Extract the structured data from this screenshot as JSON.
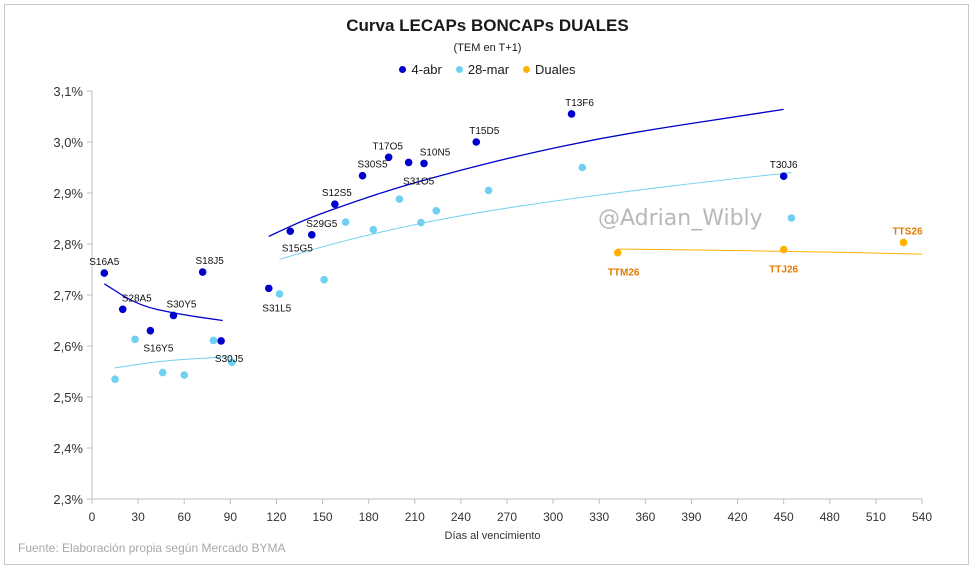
{
  "colors": {
    "abr": "#0000cc",
    "mar": "#70d0f0",
    "duales": "#ffb000",
    "duales_label": "#e07a00"
  },
  "chart_data": {
    "type": "scatter",
    "title": "Curva LECAPs BONCAPs DUALES",
    "subtitle": "(TEM en T+1)",
    "xlabel": "Días al vencimiento",
    "ylabel": "",
    "xlim": [
      0,
      540
    ],
    "ylim": [
      2.3,
      3.1
    ],
    "xticks": [
      0,
      30,
      60,
      90,
      120,
      150,
      180,
      210,
      240,
      270,
      300,
      330,
      360,
      390,
      420,
      450,
      480,
      510,
      540
    ],
    "yticks": [
      2.3,
      2.4,
      2.5,
      2.6,
      2.7,
      2.8,
      2.9,
      3.0,
      3.1
    ],
    "ytick_labels": [
      "2,3%",
      "2,4%",
      "2,5%",
      "2,6%",
      "2,7%",
      "2,8%",
      "2,9%",
      "3,0%",
      "3,1%"
    ],
    "grid": false,
    "legend_position": "top",
    "series": [
      {
        "name": "4-abr",
        "points": [
          {
            "x": 8,
            "y": 2.743,
            "label": "S16A5"
          },
          {
            "x": 20,
            "y": 2.672,
            "label": "S28A5"
          },
          {
            "x": 38,
            "y": 2.63,
            "label": "S16Y5"
          },
          {
            "x": 53,
            "y": 2.66,
            "label": "S30Y5"
          },
          {
            "x": 72,
            "y": 2.745,
            "label": "S18J5"
          },
          {
            "x": 84,
            "y": 2.61,
            "label": "S30J5"
          },
          {
            "x": 115,
            "y": 2.713,
            "label": "S31L5"
          },
          {
            "x": 129,
            "y": 2.825,
            "label": "S15G5"
          },
          {
            "x": 143,
            "y": 2.818,
            "label": "S29G5"
          },
          {
            "x": 158,
            "y": 2.878,
            "label": "S12S5"
          },
          {
            "x": 176,
            "y": 2.934,
            "label": "S30S5"
          },
          {
            "x": 193,
            "y": 2.97,
            "label": "T17O5"
          },
          {
            "x": 206,
            "y": 2.96,
            "label": "S31O5"
          },
          {
            "x": 216,
            "y": 2.958,
            "label": "S10N5"
          },
          {
            "x": 250,
            "y": 3.0,
            "label": "T15D5"
          },
          {
            "x": 312,
            "y": 3.055,
            "label": "T13F6"
          },
          {
            "x": 450,
            "y": 2.933,
            "label": "T30J6"
          }
        ]
      },
      {
        "name": "28-mar",
        "points": [
          {
            "x": 15,
            "y": 2.535
          },
          {
            "x": 28,
            "y": 2.613
          },
          {
            "x": 46,
            "y": 2.548
          },
          {
            "x": 60,
            "y": 2.543
          },
          {
            "x": 79,
            "y": 2.611
          },
          {
            "x": 91,
            "y": 2.568
          },
          {
            "x": 122,
            "y": 2.702
          },
          {
            "x": 151,
            "y": 2.73
          },
          {
            "x": 165,
            "y": 2.843
          },
          {
            "x": 183,
            "y": 2.828
          },
          {
            "x": 200,
            "y": 2.888
          },
          {
            "x": 214,
            "y": 2.842
          },
          {
            "x": 224,
            "y": 2.865
          },
          {
            "x": 258,
            "y": 2.905
          },
          {
            "x": 319,
            "y": 2.95
          },
          {
            "x": 455,
            "y": 2.851
          }
        ]
      },
      {
        "name": "Duales",
        "points": [
          {
            "x": 342,
            "y": 2.783,
            "label": "TTM26"
          },
          {
            "x": 450,
            "y": 2.789,
            "label": "TTJ26"
          },
          {
            "x": 528,
            "y": 2.803,
            "label": "TTS26"
          }
        ]
      }
    ],
    "trendlines": [
      {
        "series": "4-abr",
        "segment": "short",
        "points": [
          [
            8,
            2.722
          ],
          [
            30,
            2.68
          ],
          [
            55,
            2.663
          ],
          [
            85,
            2.65
          ]
        ]
      },
      {
        "series": "4-abr",
        "segment": "long",
        "points": [
          [
            115,
            2.815
          ],
          [
            140,
            2.85
          ],
          [
            170,
            2.882
          ],
          [
            200,
            2.912
          ],
          [
            240,
            2.945
          ],
          [
            280,
            2.975
          ],
          [
            330,
            3.007
          ],
          [
            380,
            3.032
          ],
          [
            420,
            3.05
          ],
          [
            450,
            3.064
          ]
        ]
      },
      {
        "series": "28-mar",
        "segment": "short",
        "points": [
          [
            15,
            2.557
          ],
          [
            40,
            2.569
          ],
          [
            65,
            2.575
          ],
          [
            91,
            2.579
          ]
        ]
      },
      {
        "series": "28-mar",
        "segment": "long",
        "points": [
          [
            122,
            2.77
          ],
          [
            150,
            2.795
          ],
          [
            180,
            2.818
          ],
          [
            220,
            2.845
          ],
          [
            260,
            2.866
          ],
          [
            300,
            2.884
          ],
          [
            350,
            2.904
          ],
          [
            400,
            2.922
          ],
          [
            455,
            2.94
          ]
        ]
      },
      {
        "series": "Duales",
        "segment": "full",
        "points": [
          [
            342,
            2.79
          ],
          [
            380,
            2.789
          ],
          [
            420,
            2.787
          ],
          [
            460,
            2.785
          ],
          [
            500,
            2.783
          ],
          [
            540,
            2.78
          ]
        ]
      }
    ]
  },
  "watermark": "@Adrian_Wibly",
  "source": "Fuente: Elaboración propia según Mercado BYMA"
}
